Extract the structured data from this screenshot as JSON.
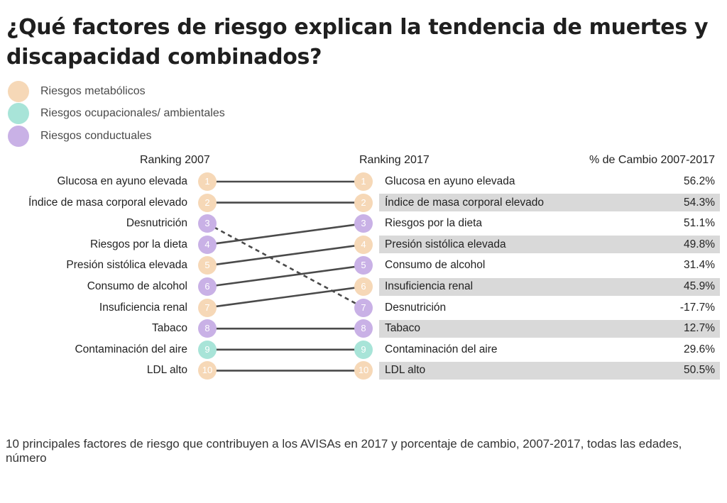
{
  "title": "¿Qué factores de riesgo explican la tendencia de muertes y discapacidad combinados?",
  "legend": [
    {
      "label": "Riesgos metabólicos",
      "color": "#f6d8b7"
    },
    {
      "label": "Riesgos ocupacionales/ ambientales",
      "color": "#a8e4d8"
    },
    {
      "label": "Riesgos conductuales",
      "color": "#c9b1e6"
    }
  ],
  "headers": {
    "left": "Ranking 2007",
    "right": "Ranking 2017",
    "pct": "% de Cambio 2007-2017"
  },
  "footnote": "10 principales factores de riesgo que contribuyen a los AVISAs en 2017 y porcentaje de cambio, 2007-2017, todas las edades, número",
  "chart_data": {
    "type": "table",
    "ranking_2007": [
      {
        "rank": "1",
        "label": "Glucosa en ayuno elevada",
        "category": "metabolic"
      },
      {
        "rank": "2",
        "label": "Índice de masa corporal elevado",
        "category": "metabolic"
      },
      {
        "rank": "3",
        "label": "Desnutrición",
        "category": "behavioral"
      },
      {
        "rank": "4",
        "label": "Riesgos por la dieta",
        "category": "behavioral"
      },
      {
        "rank": "5",
        "label": "Presión sistólica elevada",
        "category": "metabolic"
      },
      {
        "rank": "6",
        "label": "Consumo de alcohol",
        "category": "behavioral"
      },
      {
        "rank": "7",
        "label": "Insuficiencia renal",
        "category": "metabolic"
      },
      {
        "rank": "8",
        "label": "Tabaco",
        "category": "behavioral"
      },
      {
        "rank": "9",
        "label": "Contaminación del aire",
        "category": "environmental"
      },
      {
        "rank": "10",
        "label": "LDL alto",
        "category": "metabolic"
      }
    ],
    "ranking_2017": [
      {
        "rank": "1",
        "label": "Glucosa en ayuno elevada",
        "change": "56.2%",
        "category": "metabolic",
        "rank_2007": 1
      },
      {
        "rank": "2",
        "label": "Índice de masa corporal elevado",
        "change": "54.3%",
        "category": "metabolic",
        "rank_2007": 2
      },
      {
        "rank": "3",
        "label": "Riesgos por la dieta",
        "change": "51.1%",
        "category": "behavioral",
        "rank_2007": 4
      },
      {
        "rank": "4",
        "label": "Presión sistólica elevada",
        "change": "49.8%",
        "category": "metabolic",
        "rank_2007": 5
      },
      {
        "rank": "5",
        "label": "Consumo de alcohol",
        "change": "31.4%",
        "category": "behavioral",
        "rank_2007": 6
      },
      {
        "rank": "6",
        "label": "Insuficiencia renal",
        "change": "45.9%",
        "category": "metabolic",
        "rank_2007": 7
      },
      {
        "rank": "7",
        "label": "Desnutrición",
        "change": "-17.7%",
        "category": "behavioral",
        "rank_2007": 3
      },
      {
        "rank": "8",
        "label": "Tabaco",
        "change": "12.7%",
        "category": "behavioral",
        "rank_2007": 8
      },
      {
        "rank": "9",
        "label": "Contaminación del aire",
        "change": "29.6%",
        "category": "environmental",
        "rank_2007": 9
      },
      {
        "rank": "10",
        "label": "LDL alto",
        "change": "50.5%",
        "category": "metabolic",
        "rank_2007": 10
      }
    ],
    "category_colors": {
      "metabolic": "#f6d8b7",
      "environmental": "#a8e4d8",
      "behavioral": "#c9b1e6"
    },
    "line_color": "#4a4a4a",
    "declining_line_style": "dashed"
  }
}
